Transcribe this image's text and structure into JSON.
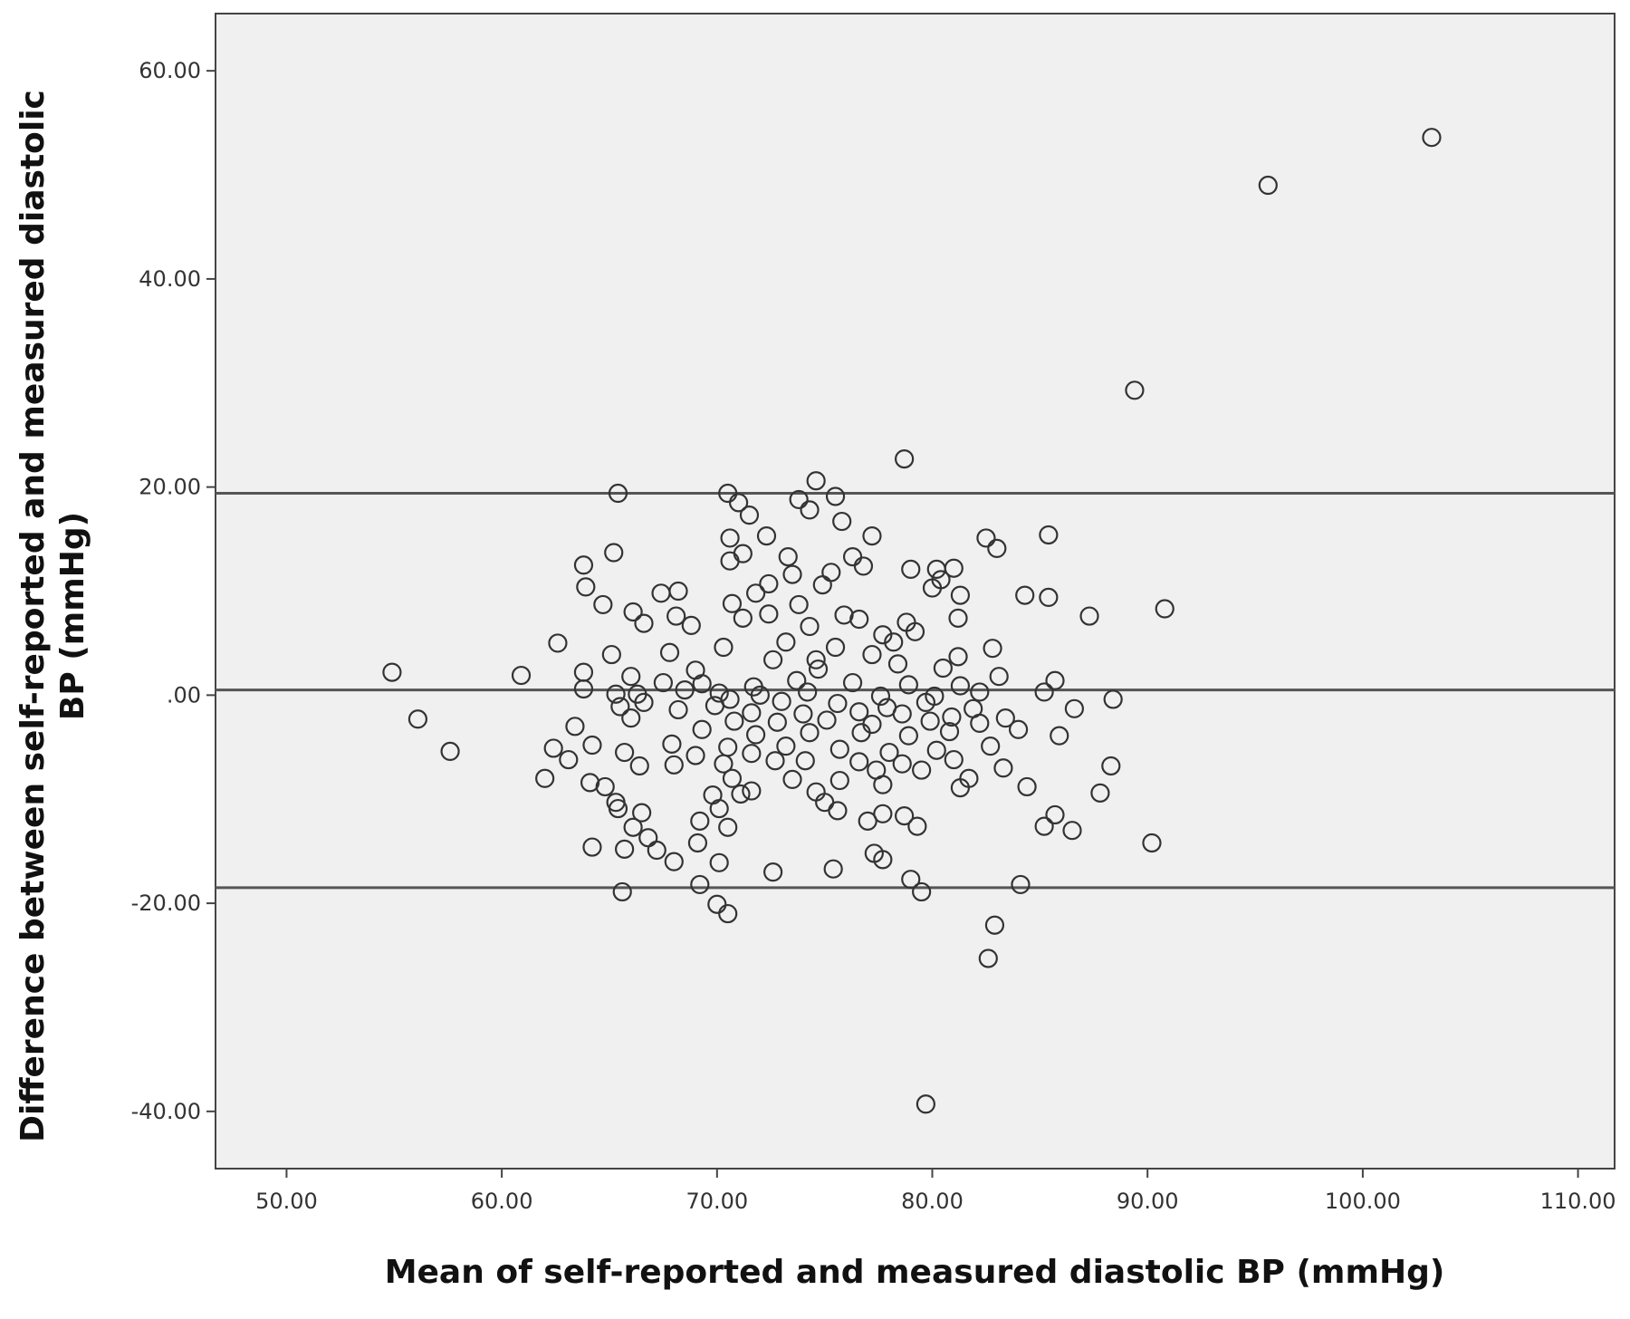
{
  "chart_data": {
    "type": "scatter",
    "title": "",
    "xlabel": "Mean of self-reported and measured diastolic BP (mmHg)",
    "ylabel_lines": [
      "Difference between self-reported and measured diastolic",
      "BP (mmHg)"
    ],
    "xlim": [
      46.7,
      111.7
    ],
    "ylim": [
      -45.5,
      65.5
    ],
    "x_ticks": [
      {
        "value": 50,
        "label": "50.00"
      },
      {
        "value": 60,
        "label": "60.00"
      },
      {
        "value": 70,
        "label": "70.00"
      },
      {
        "value": 80,
        "label": "80.00"
      },
      {
        "value": 90,
        "label": "90.00"
      },
      {
        "value": 100,
        "label": "100.00"
      },
      {
        "value": 110,
        "label": "110.00"
      }
    ],
    "y_ticks": [
      {
        "value": 60,
        "label": "60.00"
      },
      {
        "value": 40,
        "label": "40.00"
      },
      {
        "value": 20,
        "label": "20.00"
      },
      {
        "value": 0,
        "label": ".00"
      },
      {
        "value": -20,
        "label": "-20.00"
      },
      {
        "value": -40,
        "label": "-40.00"
      }
    ],
    "grid": false,
    "background_color": "#f0f0f0",
    "marker_color": "#333333",
    "reference_lines": [
      {
        "name": "upper-limit-of-agreement",
        "y": 19.4
      },
      {
        "name": "mean-difference",
        "y": 0.5
      },
      {
        "name": "lower-limit-of-agreement",
        "y": -18.5
      }
    ],
    "points": [
      [
        103.2,
        53.6
      ],
      [
        95.6,
        49
      ],
      [
        89.4,
        29.3
      ],
      [
        78.7,
        22.7
      ],
      [
        74.6,
        20.6
      ],
      [
        65.4,
        19.4
      ],
      [
        70.5,
        19.4
      ],
      [
        75.5,
        19.1
      ],
      [
        71.0,
        18.5
      ],
      [
        73.8,
        18.8
      ],
      [
        74.3,
        17.8
      ],
      [
        71.5,
        17.3
      ],
      [
        75.8,
        16.7
      ],
      [
        72.3,
        15.3
      ],
      [
        77.2,
        15.3
      ],
      [
        82.5,
        15.1
      ],
      [
        85.4,
        15.4
      ],
      [
        70.6,
        15.1
      ],
      [
        83.0,
        14.1
      ],
      [
        65.2,
        13.7
      ],
      [
        71.2,
        13.6
      ],
      [
        73.3,
        13.3
      ],
      [
        76.3,
        13.3
      ],
      [
        70.6,
        12.9
      ],
      [
        63.8,
        12.5
      ],
      [
        73.5,
        11.6
      ],
      [
        75.3,
        11.8
      ],
      [
        76.8,
        12.4
      ],
      [
        79.0,
        12.1
      ],
      [
        80.2,
        12.1
      ],
      [
        81.0,
        12.2
      ],
      [
        80.4,
        11.1
      ],
      [
        72.4,
        10.7
      ],
      [
        74.9,
        10.6
      ],
      [
        63.9,
        10.4
      ],
      [
        67.4,
        9.8
      ],
      [
        68.2,
        10.0
      ],
      [
        71.8,
        9.8
      ],
      [
        80.0,
        10.3
      ],
      [
        81.3,
        9.6
      ],
      [
        84.3,
        9.6
      ],
      [
        85.4,
        9.4
      ],
      [
        64.7,
        8.7
      ],
      [
        70.7,
        8.8
      ],
      [
        73.8,
        8.7
      ],
      [
        75.9,
        7.7
      ],
      [
        66.1,
        8.0
      ],
      [
        68.1,
        7.6
      ],
      [
        71.2,
        7.4
      ],
      [
        72.4,
        7.8
      ],
      [
        76.6,
        7.3
      ],
      [
        78.8,
        7.0
      ],
      [
        81.2,
        7.4
      ],
      [
        87.3,
        7.6
      ],
      [
        90.8,
        8.3
      ],
      [
        66.6,
        6.9
      ],
      [
        68.8,
        6.7
      ],
      [
        74.3,
        6.6
      ],
      [
        77.7,
        5.8
      ],
      [
        79.2,
        6.1
      ],
      [
        73.2,
        5.1
      ],
      [
        78.2,
        5.1
      ],
      [
        70.3,
        4.6
      ],
      [
        75.5,
        4.6
      ],
      [
        82.8,
        4.5
      ],
      [
        77.2,
        3.9
      ],
      [
        81.2,
        3.7
      ],
      [
        65.1,
        3.9
      ],
      [
        62.6,
        5.0
      ],
      [
        67.8,
        4.1
      ],
      [
        72.6,
        3.4
      ],
      [
        74.6,
        3.4
      ],
      [
        78.4,
        3.0
      ],
      [
        69.0,
        2.4
      ],
      [
        74.7,
        2.5
      ],
      [
        80.5,
        2.6
      ],
      [
        63.8,
        2.2
      ],
      [
        60.9,
        1.9
      ],
      [
        54.9,
        2.2
      ],
      [
        66.0,
        1.8
      ],
      [
        67.5,
        1.2
      ],
      [
        69.3,
        1.1
      ],
      [
        71.7,
        0.8
      ],
      [
        73.7,
        1.4
      ],
      [
        76.3,
        1.2
      ],
      [
        78.9,
        1.0
      ],
      [
        81.3,
        0.9
      ],
      [
        83.1,
        1.8
      ],
      [
        85.7,
        1.4
      ],
      [
        85.2,
        0.3
      ],
      [
        70.1,
        0.2
      ],
      [
        63.8,
        0.6
      ],
      [
        65.3,
        0.1
      ],
      [
        66.3,
        0.1
      ],
      [
        68.5,
        0.5
      ],
      [
        72.0,
        0.0
      ],
      [
        74.2,
        0.3
      ],
      [
        77.6,
        -0.1
      ],
      [
        80.1,
        -0.1
      ],
      [
        82.2,
        0.3
      ],
      [
        88.4,
        -0.4
      ],
      [
        66.6,
        -0.7
      ],
      [
        70.6,
        -0.4
      ],
      [
        73.0,
        -0.6
      ],
      [
        75.6,
        -0.8
      ],
      [
        77.9,
        -1.2
      ],
      [
        79.7,
        -0.7
      ],
      [
        81.9,
        -1.3
      ],
      [
        86.6,
        -1.3
      ],
      [
        65.5,
        -1.1
      ],
      [
        68.2,
        -1.4
      ],
      [
        69.9,
        -1.0
      ],
      [
        71.6,
        -1.7
      ],
      [
        74.0,
        -1.8
      ],
      [
        76.6,
        -1.6
      ],
      [
        78.6,
        -1.8
      ],
      [
        80.9,
        -2.1
      ],
      [
        83.4,
        -2.2
      ],
      [
        56.1,
        -2.3
      ],
      [
        66.0,
        -2.2
      ],
      [
        70.8,
        -2.5
      ],
      [
        72.8,
        -2.6
      ],
      [
        75.1,
        -2.4
      ],
      [
        77.2,
        -2.8
      ],
      [
        79.9,
        -2.5
      ],
      [
        82.2,
        -2.7
      ],
      [
        84.0,
        -3.3
      ],
      [
        63.4,
        -3.0
      ],
      [
        69.3,
        -3.3
      ],
      [
        71.8,
        -3.8
      ],
      [
        74.3,
        -3.6
      ],
      [
        76.7,
        -3.6
      ],
      [
        78.9,
        -3.9
      ],
      [
        80.8,
        -3.5
      ],
      [
        85.9,
        -3.9
      ],
      [
        57.6,
        -5.4
      ],
      [
        64.2,
        -4.8
      ],
      [
        67.9,
        -4.7
      ],
      [
        70.5,
        -5.0
      ],
      [
        73.2,
        -4.9
      ],
      [
        75.7,
        -5.2
      ],
      [
        78.0,
        -5.5
      ],
      [
        80.2,
        -5.3
      ],
      [
        82.7,
        -4.9
      ],
      [
        62.4,
        -5.1
      ],
      [
        65.7,
        -5.5
      ],
      [
        69.0,
        -5.8
      ],
      [
        71.6,
        -5.6
      ],
      [
        74.1,
        -6.3
      ],
      [
        76.6,
        -6.4
      ],
      [
        78.6,
        -6.6
      ],
      [
        81.0,
        -6.2
      ],
      [
        63.1,
        -6.2
      ],
      [
        66.4,
        -6.8
      ],
      [
        68.0,
        -6.7
      ],
      [
        70.3,
        -6.6
      ],
      [
        72.7,
        -6.3
      ],
      [
        77.4,
        -7.2
      ],
      [
        79.5,
        -7.2
      ],
      [
        83.3,
        -7.0
      ],
      [
        88.3,
        -6.8
      ],
      [
        62.0,
        -8.0
      ],
      [
        64.1,
        -8.4
      ],
      [
        70.7,
        -8.0
      ],
      [
        73.5,
        -8.1
      ],
      [
        75.7,
        -8.2
      ],
      [
        77.7,
        -8.6
      ],
      [
        81.7,
        -8.0
      ],
      [
        64.8,
        -8.8
      ],
      [
        71.6,
        -9.2
      ],
      [
        74.6,
        -9.3
      ],
      [
        81.3,
        -8.9
      ],
      [
        84.4,
        -8.8
      ],
      [
        87.8,
        -9.4
      ],
      [
        65.3,
        -10.3
      ],
      [
        69.8,
        -9.6
      ],
      [
        71.1,
        -9.5
      ],
      [
        75.0,
        -10.3
      ],
      [
        65.4,
        -10.9
      ],
      [
        70.1,
        -10.9
      ],
      [
        75.6,
        -11.1
      ],
      [
        77.7,
        -11.4
      ],
      [
        66.5,
        -11.3
      ],
      [
        78.7,
        -11.6
      ],
      [
        85.7,
        -11.5
      ],
      [
        69.2,
        -12.1
      ],
      [
        77.0,
        -12.1
      ],
      [
        66.1,
        -12.7
      ],
      [
        70.5,
        -12.7
      ],
      [
        79.3,
        -12.6
      ],
      [
        85.2,
        -12.6
      ],
      [
        86.5,
        -13.0
      ],
      [
        66.8,
        -13.7
      ],
      [
        69.1,
        -14.2
      ],
      [
        90.2,
        -14.2
      ],
      [
        67.2,
        -14.9
      ],
      [
        64.2,
        -14.6
      ],
      [
        65.7,
        -14.8
      ],
      [
        77.3,
        -15.2
      ],
      [
        77.7,
        -15.8
      ],
      [
        68.0,
        -16.0
      ],
      [
        70.1,
        -16.1
      ],
      [
        75.4,
        -16.7
      ],
      [
        72.6,
        -17.0
      ],
      [
        79.0,
        -17.7
      ],
      [
        69.2,
        -18.2
      ],
      [
        84.1,
        -18.2
      ],
      [
        65.6,
        -18.9
      ],
      [
        79.5,
        -18.9
      ],
      [
        70.0,
        -20.1
      ],
      [
        70.5,
        -21.0
      ],
      [
        82.9,
        -22.1
      ],
      [
        82.6,
        -25.3
      ],
      [
        79.7,
        -39.3
      ]
    ]
  }
}
